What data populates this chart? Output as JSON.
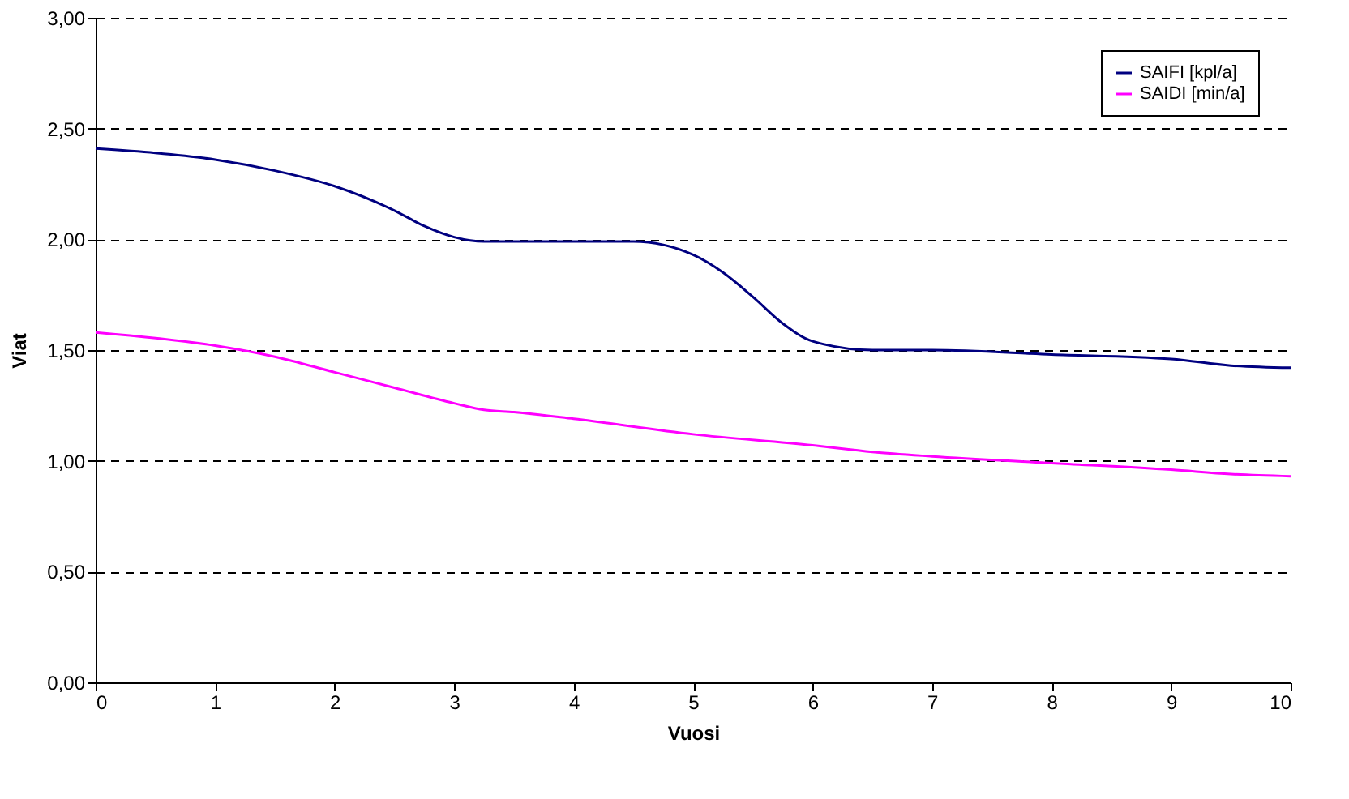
{
  "chart_data": {
    "type": "line",
    "xlabel": "Vuosi",
    "ylabel": "Viat",
    "xlim": [
      0,
      10
    ],
    "xticks": [
      0,
      1,
      2,
      3,
      4,
      5,
      6,
      7,
      8,
      9,
      10
    ],
    "ylim": [
      0,
      3
    ],
    "yticks": [
      {
        "value": 0,
        "label": "0,00"
      },
      {
        "value": 0.5,
        "label": "0,50"
      },
      {
        "value": 1,
        "label": "1,00"
      },
      {
        "value": 1.5,
        "label": "1,50"
      },
      {
        "value": 2,
        "label": "2,00"
      },
      {
        "value": 2.5,
        "label": "2,50"
      },
      {
        "value": 3,
        "label": "3,00"
      }
    ],
    "grid": "y",
    "legend": "top right",
    "marker": "none",
    "line_style": "solid",
    "series": [
      {
        "name": "SAIFI [kpl/a]",
        "color": "#000080",
        "x": [
          0,
          0.5,
          1,
          1.5,
          2,
          2.5,
          2.75,
          3,
          3.25,
          4,
          4.5,
          5,
          5.25,
          5.5,
          5.75,
          6,
          6.5,
          7,
          8,
          9,
          9.5,
          10
        ],
        "values": [
          2.41,
          2.39,
          2.36,
          2.31,
          2.24,
          2.13,
          2.06,
          2.01,
          1.99,
          1.99,
          1.99,
          1.93,
          1.85,
          1.74,
          1.62,
          1.54,
          1.5,
          1.5,
          1.48,
          1.46,
          1.43,
          1.42
        ]
      },
      {
        "name": "SAIDI [min/a]",
        "color": "#ff00ff",
        "x": [
          0,
          1,
          1.5,
          2,
          2.5,
          3,
          3.25,
          3.5,
          4,
          5,
          6,
          6.5,
          7,
          8,
          9,
          9.5,
          10
        ],
        "values": [
          1.58,
          1.52,
          1.47,
          1.4,
          1.33,
          1.26,
          1.23,
          1.22,
          1.19,
          1.12,
          1.07,
          1.04,
          1.02,
          0.99,
          0.96,
          0.94,
          0.93
        ]
      }
    ]
  }
}
